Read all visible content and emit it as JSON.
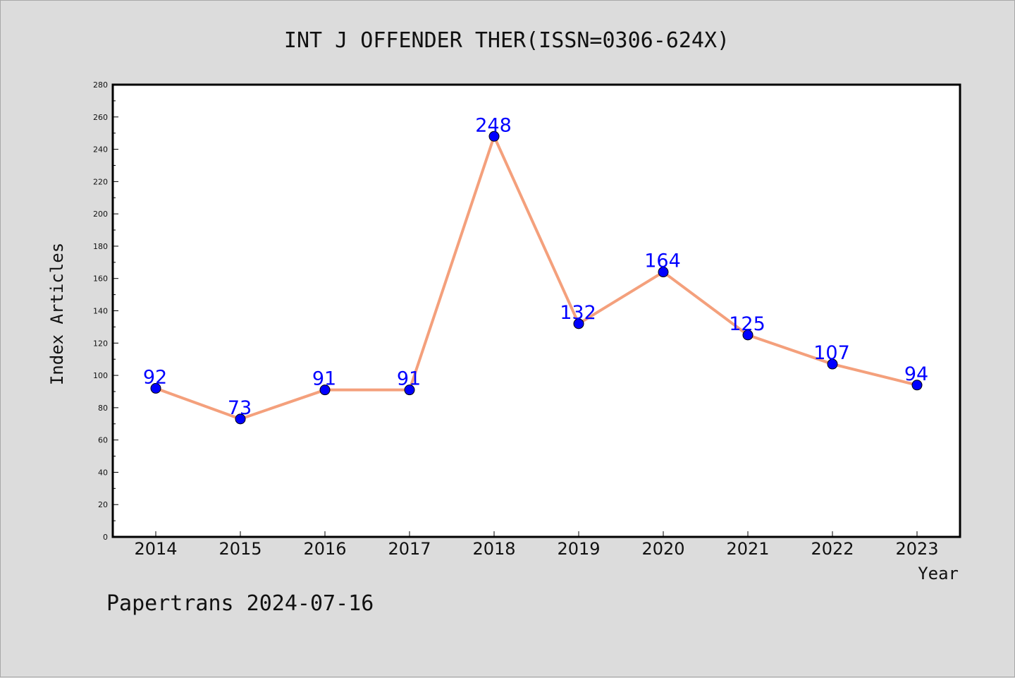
{
  "chart_data": {
    "type": "line",
    "title": "INT J OFFENDER THER(ISSN=0306-624X)",
    "xlabel": "Year",
    "ylabel": "Index Articles",
    "categories": [
      "2014",
      "2015",
      "2016",
      "2017",
      "2018",
      "2019",
      "2020",
      "2021",
      "2022",
      "2023"
    ],
    "values": [
      92,
      73,
      91,
      91,
      248,
      132,
      164,
      125,
      107,
      94
    ],
    "data_labels": [
      "92",
      "73",
      "91",
      "91",
      "248",
      "132",
      "164",
      "125",
      "107",
      "94"
    ],
    "ylim": [
      0,
      280
    ],
    "yticks": [
      0,
      20,
      40,
      60,
      80,
      100,
      120,
      140,
      160,
      180,
      200,
      220,
      240,
      260,
      280
    ],
    "ytick_labels": [
      "0",
      "20",
      "40",
      "60",
      "80",
      "100",
      "120",
      "140",
      "160",
      "180",
      "200",
      "220",
      "240",
      "260",
      "280"
    ],
    "grid": false,
    "line_color": "#f4a07c",
    "marker_color": "#0000ff",
    "label_color": "#0000ff"
  },
  "footer": "Papertrans 2024-07-16"
}
